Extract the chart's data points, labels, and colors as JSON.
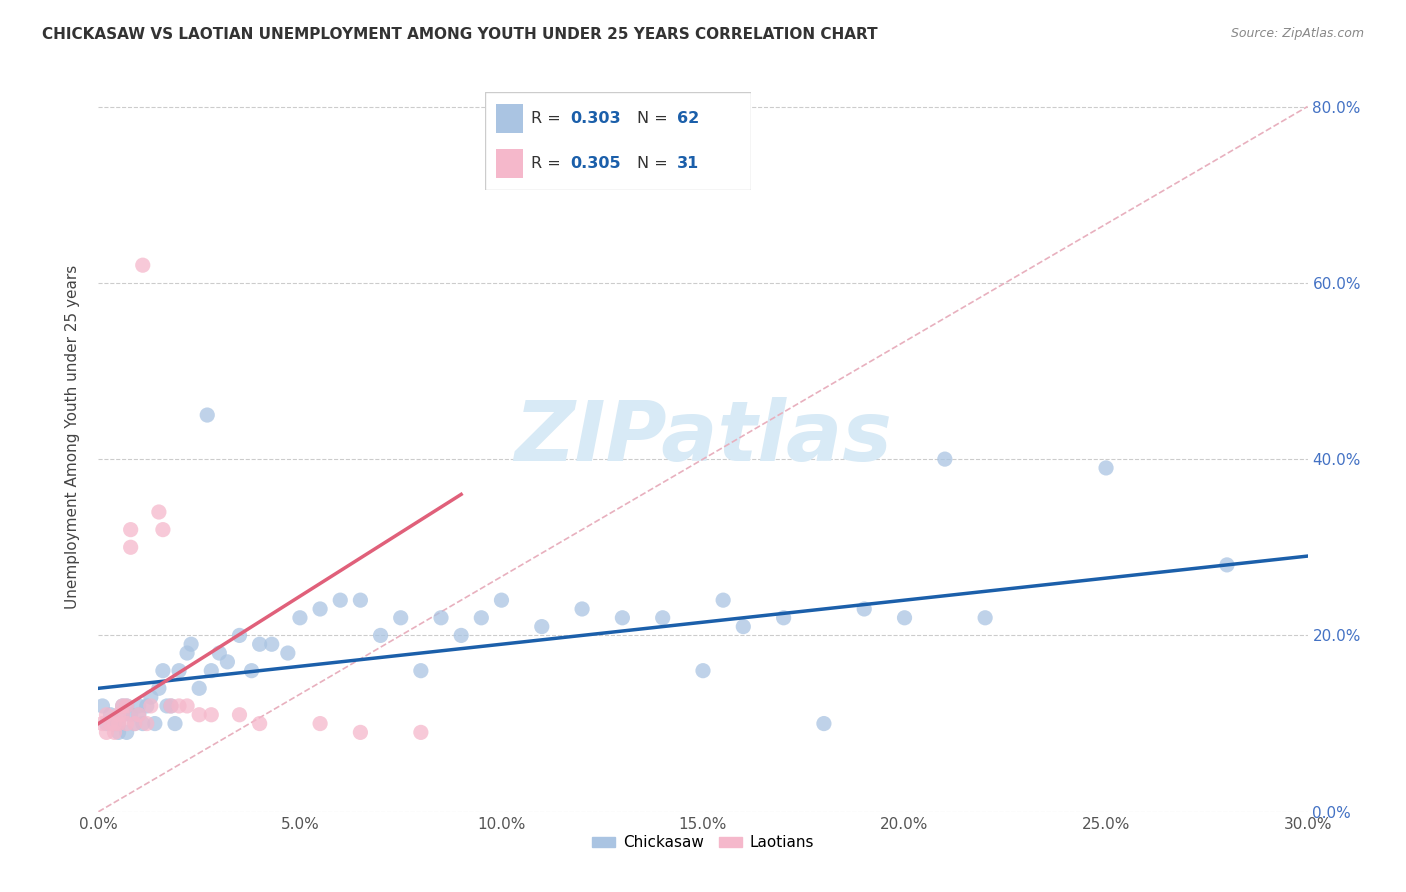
{
  "title": "CHICKASAW VS LAOTIAN UNEMPLOYMENT AMONG YOUTH UNDER 25 YEARS CORRELATION CHART",
  "source": "Source: ZipAtlas.com",
  "ylabel": "Unemployment Among Youth under 25 years",
  "xlim": [
    0.0,
    0.3
  ],
  "ylim": [
    0.0,
    0.85
  ],
  "xticks": [
    0.0,
    0.05,
    0.1,
    0.15,
    0.2,
    0.25,
    0.3
  ],
  "yticks": [
    0.0,
    0.2,
    0.4,
    0.6,
    0.8
  ],
  "chickasaw_R": 0.303,
  "chickasaw_N": 62,
  "laotian_R": 0.305,
  "laotian_N": 31,
  "chickasaw_color": "#aac4e2",
  "laotian_color": "#f5b8cb",
  "trend_chickasaw_color": "#1b5faa",
  "trend_laotian_color": "#e0607a",
  "ref_line_color": "#e8b0be",
  "watermark": "ZIPatlas",
  "watermark_color": "#d8eaf6",
  "chick_x": [
    0.001,
    0.002,
    0.003,
    0.004,
    0.005,
    0.005,
    0.006,
    0.006,
    0.007,
    0.007,
    0.008,
    0.009,
    0.01,
    0.01,
    0.011,
    0.012,
    0.013,
    0.014,
    0.015,
    0.016,
    0.017,
    0.018,
    0.019,
    0.02,
    0.022,
    0.023,
    0.025,
    0.027,
    0.028,
    0.03,
    0.032,
    0.035,
    0.038,
    0.04,
    0.043,
    0.047,
    0.05,
    0.055,
    0.06,
    0.065,
    0.07,
    0.075,
    0.08,
    0.085,
    0.09,
    0.095,
    0.1,
    0.11,
    0.12,
    0.13,
    0.14,
    0.15,
    0.155,
    0.16,
    0.17,
    0.18,
    0.19,
    0.2,
    0.21,
    0.22,
    0.25,
    0.28
  ],
  "chick_y": [
    0.12,
    0.1,
    0.11,
    0.1,
    0.1,
    0.09,
    0.11,
    0.12,
    0.09,
    0.12,
    0.11,
    0.1,
    0.12,
    0.11,
    0.1,
    0.12,
    0.13,
    0.1,
    0.14,
    0.16,
    0.12,
    0.12,
    0.1,
    0.16,
    0.18,
    0.19,
    0.14,
    0.45,
    0.16,
    0.18,
    0.17,
    0.2,
    0.16,
    0.19,
    0.19,
    0.18,
    0.22,
    0.23,
    0.24,
    0.24,
    0.2,
    0.22,
    0.16,
    0.22,
    0.2,
    0.22,
    0.24,
    0.21,
    0.23,
    0.22,
    0.22,
    0.16,
    0.24,
    0.21,
    0.22,
    0.1,
    0.23,
    0.22,
    0.4,
    0.22,
    0.39,
    0.28
  ],
  "laot_x": [
    0.001,
    0.002,
    0.002,
    0.003,
    0.004,
    0.004,
    0.005,
    0.005,
    0.006,
    0.006,
    0.007,
    0.007,
    0.008,
    0.008,
    0.009,
    0.01,
    0.011,
    0.012,
    0.013,
    0.015,
    0.016,
    0.018,
    0.02,
    0.022,
    0.025,
    0.028,
    0.035,
    0.04,
    0.055,
    0.065,
    0.08
  ],
  "laot_y": [
    0.1,
    0.09,
    0.11,
    0.1,
    0.09,
    0.1,
    0.1,
    0.11,
    0.11,
    0.12,
    0.12,
    0.1,
    0.3,
    0.32,
    0.1,
    0.11,
    0.62,
    0.1,
    0.12,
    0.34,
    0.32,
    0.12,
    0.12,
    0.12,
    0.11,
    0.11,
    0.11,
    0.1,
    0.1,
    0.09,
    0.09
  ],
  "blue_trend_x0": 0.0,
  "blue_trend_y0": 0.14,
  "blue_trend_x1": 0.3,
  "blue_trend_y1": 0.29,
  "pink_trend_x0": 0.0,
  "pink_trend_y0": 0.1,
  "pink_trend_x1": 0.09,
  "pink_trend_y1": 0.36,
  "ref_line_x0": 0.0,
  "ref_line_y0": 0.0,
  "ref_line_x1": 0.3,
  "ref_line_y1": 0.8
}
